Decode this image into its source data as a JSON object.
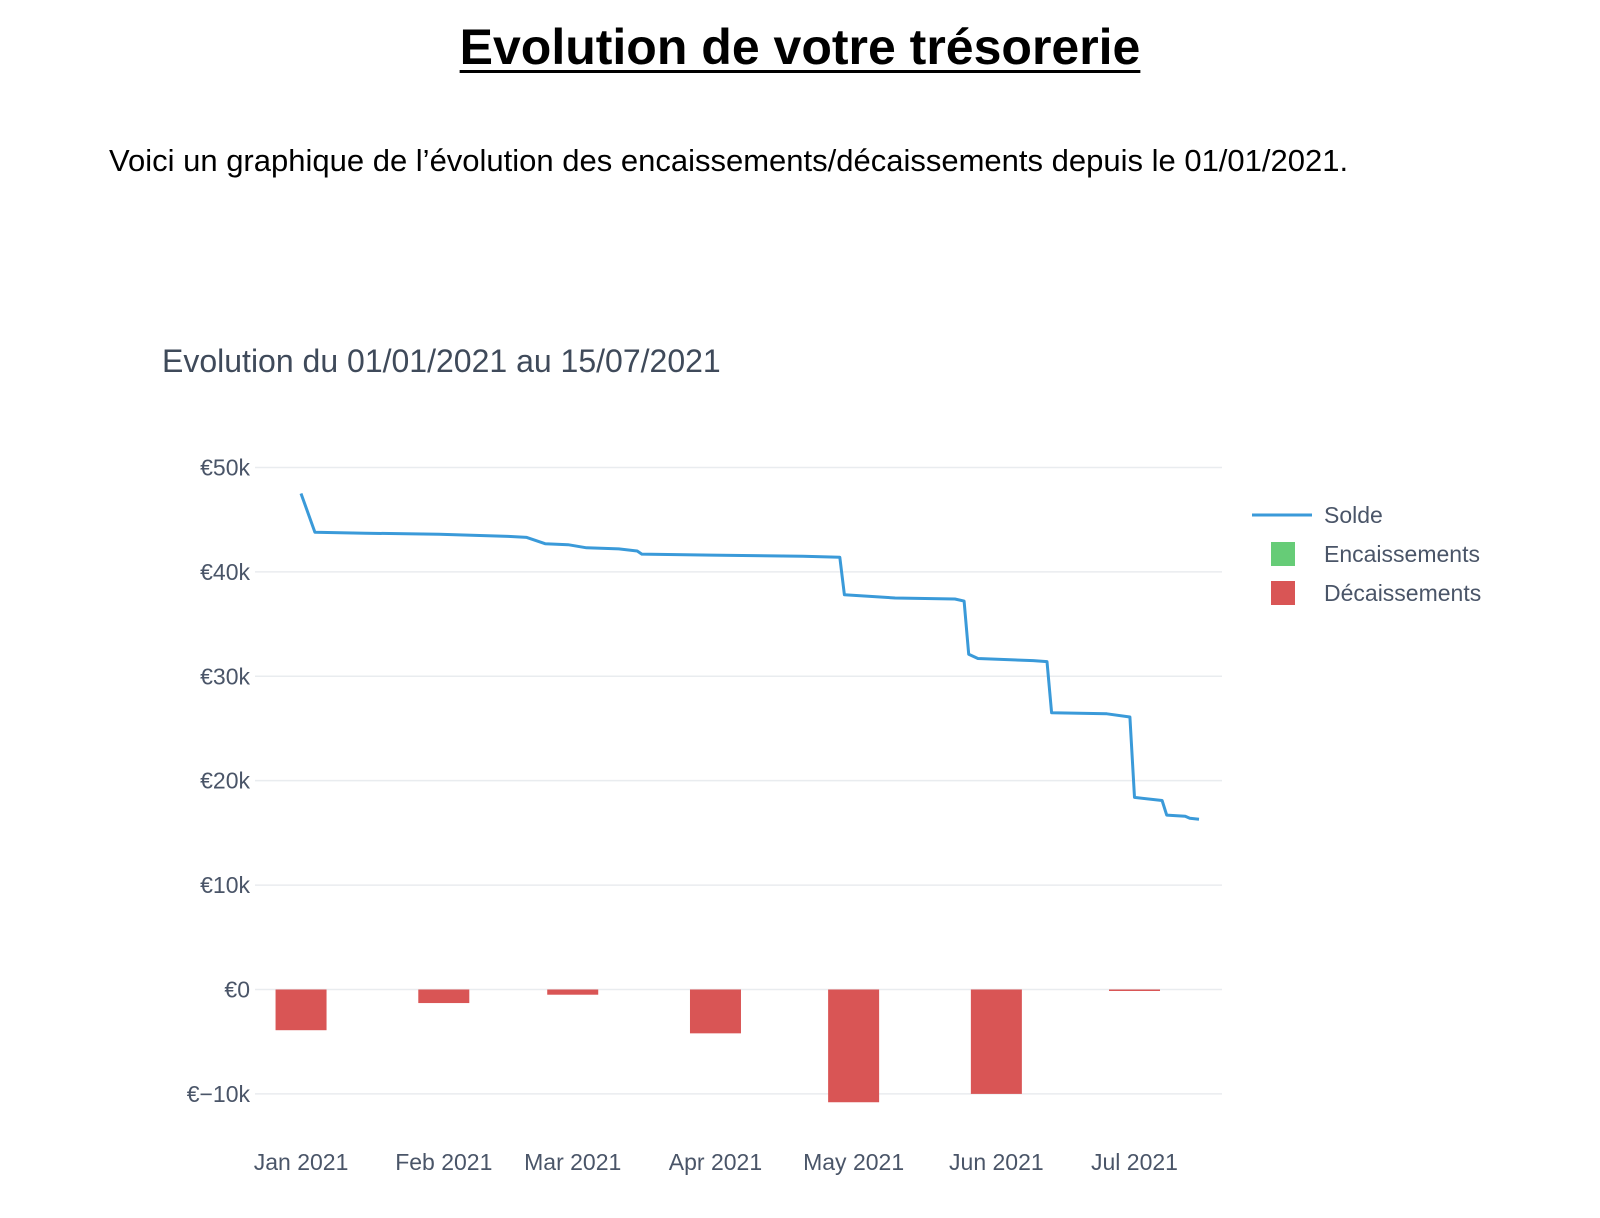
{
  "heading": "Evolution de votre trésorerie",
  "intro": "Voici un graphique de l’évolution des encaissements/décaissements depuis le 01/01/2021.",
  "colors": {
    "solde": "#3a9ad9",
    "encaissements": "#66cc77",
    "decaissements": "#d95555"
  },
  "chart_data": {
    "type": "line",
    "title": "Evolution du 01/01/2021 au 15/07/2021",
    "xlabel": "",
    "ylabel": "",
    "xlim": [
      "2020-12-22",
      "2021-07-20"
    ],
    "ylim": [
      -12500,
      51000
    ],
    "y_ticks": [
      {
        "value": 50000,
        "label": "€50k"
      },
      {
        "value": 40000,
        "label": "€40k"
      },
      {
        "value": 30000,
        "label": "€30k"
      },
      {
        "value": 20000,
        "label": "€20k"
      },
      {
        "value": 10000,
        "label": "€10k"
      },
      {
        "value": 0,
        "label": "€0"
      },
      {
        "value": -10000,
        "label": "€−10k"
      }
    ],
    "x_ticks": [
      {
        "date": "2021-01-01",
        "label": "Jan 2021"
      },
      {
        "date": "2021-02-01",
        "label": "Feb 2021"
      },
      {
        "date": "2021-03-01",
        "label": "Mar 2021"
      },
      {
        "date": "2021-04-01",
        "label": "Apr 2021"
      },
      {
        "date": "2021-05-01",
        "label": "May 2021"
      },
      {
        "date": "2021-06-01",
        "label": "Jun 2021"
      },
      {
        "date": "2021-07-01",
        "label": "Jul 2021"
      }
    ],
    "grid": true,
    "legend_position": "top-right",
    "legend": [
      "Solde",
      "Encaissements",
      "Décaissements"
    ],
    "series": [
      {
        "name": "Solde",
        "type": "line",
        "points": [
          [
            "2021-01-01",
            47500
          ],
          [
            "2021-01-04",
            43800
          ],
          [
            "2021-01-15",
            43700
          ],
          [
            "2021-01-31",
            43600
          ],
          [
            "2021-02-15",
            43400
          ],
          [
            "2021-02-19",
            43300
          ],
          [
            "2021-02-23",
            42700
          ],
          [
            "2021-02-28",
            42600
          ],
          [
            "2021-03-04",
            42300
          ],
          [
            "2021-03-11",
            42200
          ],
          [
            "2021-03-15",
            42000
          ],
          [
            "2021-03-16",
            41700
          ],
          [
            "2021-03-31",
            41600
          ],
          [
            "2021-04-20",
            41500
          ],
          [
            "2021-04-28",
            41400
          ],
          [
            "2021-04-29",
            37800
          ],
          [
            "2021-05-10",
            37500
          ],
          [
            "2021-05-23",
            37400
          ],
          [
            "2021-05-25",
            37200
          ],
          [
            "2021-05-26",
            32100
          ],
          [
            "2021-05-28",
            31700
          ],
          [
            "2021-06-09",
            31500
          ],
          [
            "2021-06-12",
            31400
          ],
          [
            "2021-06-13",
            26500
          ],
          [
            "2021-06-25",
            26400
          ],
          [
            "2021-06-30",
            26100
          ],
          [
            "2021-07-01",
            18400
          ],
          [
            "2021-07-07",
            18100
          ],
          [
            "2021-07-08",
            16700
          ],
          [
            "2021-07-12",
            16600
          ],
          [
            "2021-07-13",
            16400
          ],
          [
            "2021-07-15",
            16300
          ]
        ]
      },
      {
        "name": "Encaissements",
        "type": "bar",
        "points": []
      },
      {
        "name": "Décaissements",
        "type": "bar",
        "points": [
          [
            "2021-01-01",
            -3900
          ],
          [
            "2021-02-01",
            -1300
          ],
          [
            "2021-03-01",
            -500
          ],
          [
            "2021-04-01",
            -4200
          ],
          [
            "2021-05-01",
            -10800
          ],
          [
            "2021-06-01",
            -10000
          ],
          [
            "2021-07-01",
            -100
          ]
        ]
      }
    ]
  }
}
